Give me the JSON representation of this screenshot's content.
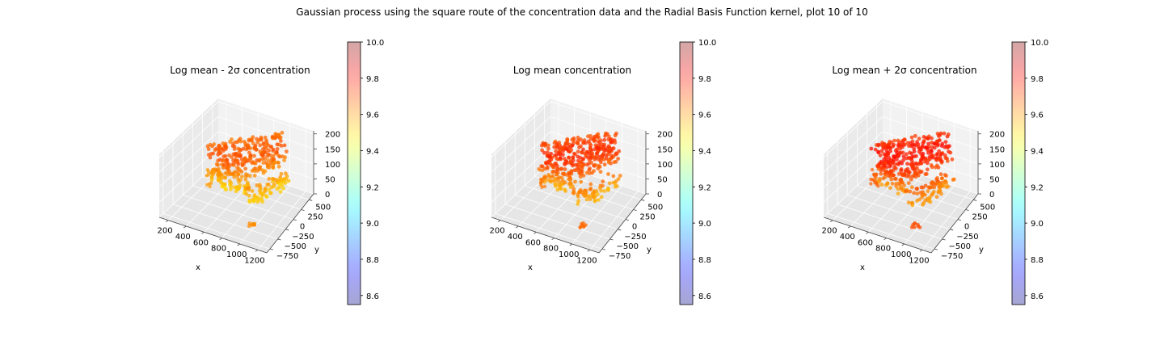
{
  "figure": {
    "suptitle": "Gaussian process using the square route of the concentration data and the Radial Basis Function kernel, plot 10 of 10"
  },
  "chart_data": [
    {
      "type": "scatter3d",
      "title": "Log mean - 2σ concentration",
      "xlabel": "x",
      "ylabel": "y",
      "zlabel": "",
      "x_ticks": [
        "200",
        "400",
        "600",
        "800",
        "1000",
        "1200"
      ],
      "y_ticks": [
        "−750",
        "−500",
        "−250",
        "0",
        "250",
        "500"
      ],
      "z_ticks": [
        "0",
        "50",
        "100",
        "150",
        "200"
      ],
      "xlim": [
        100,
        1300
      ],
      "ylim": [
        -850,
        650
      ],
      "zlim": [
        0,
        210
      ],
      "grid": true,
      "colorbar": {
        "range": [
          8.55,
          10.0
        ],
        "ticks": [
          "8.6",
          "8.8",
          "9.0",
          "9.2",
          "9.4",
          "9.6",
          "9.8",
          "10.0"
        ],
        "colormap": "jet",
        "alpha": 0.35
      },
      "point_value_range": [
        9.52,
        9.72
      ],
      "spread": 0.9
    },
    {
      "type": "scatter3d",
      "title": "Log mean concentration",
      "xlabel": "x",
      "ylabel": "y",
      "zlabel": "",
      "x_ticks": [
        "200",
        "400",
        "600",
        "800",
        "1000",
        "1200"
      ],
      "y_ticks": [
        "−750",
        "−500",
        "−250",
        "0",
        "250",
        "500"
      ],
      "z_ticks": [
        "0",
        "50",
        "100",
        "150",
        "200"
      ],
      "xlim": [
        100,
        1300
      ],
      "ylim": [
        -850,
        650
      ],
      "zlim": [
        0,
        210
      ],
      "grid": true,
      "colorbar": {
        "range": [
          8.55,
          10.0
        ],
        "ticks": [
          "8.6",
          "8.8",
          "9.0",
          "9.2",
          "9.4",
          "9.6",
          "9.8",
          "10.0"
        ],
        "colormap": "jet",
        "alpha": 0.35
      },
      "point_value_range": [
        9.56,
        9.78
      ],
      "spread": 1.0
    },
    {
      "type": "scatter3d",
      "title": "Log mean + 2σ concentration",
      "xlabel": "x",
      "ylabel": "y",
      "zlabel": "",
      "x_ticks": [
        "200",
        "400",
        "600",
        "800",
        "1000",
        "1200"
      ],
      "y_ticks": [
        "−750",
        "−500",
        "−250",
        "0",
        "250",
        "500"
      ],
      "z_ticks": [
        "0",
        "50",
        "100",
        "150",
        "200"
      ],
      "xlim": [
        100,
        1300
      ],
      "ylim": [
        -850,
        650
      ],
      "zlim": [
        0,
        210
      ],
      "grid": true,
      "colorbar": {
        "range": [
          8.55,
          10.0
        ],
        "ticks": [
          "8.6",
          "8.8",
          "9.0",
          "9.2",
          "9.4",
          "9.6",
          "9.8",
          "10.0"
        ],
        "colormap": "jet",
        "alpha": 0.35
      },
      "point_value_range": [
        9.6,
        9.82
      ],
      "spread": 1.05
    }
  ]
}
